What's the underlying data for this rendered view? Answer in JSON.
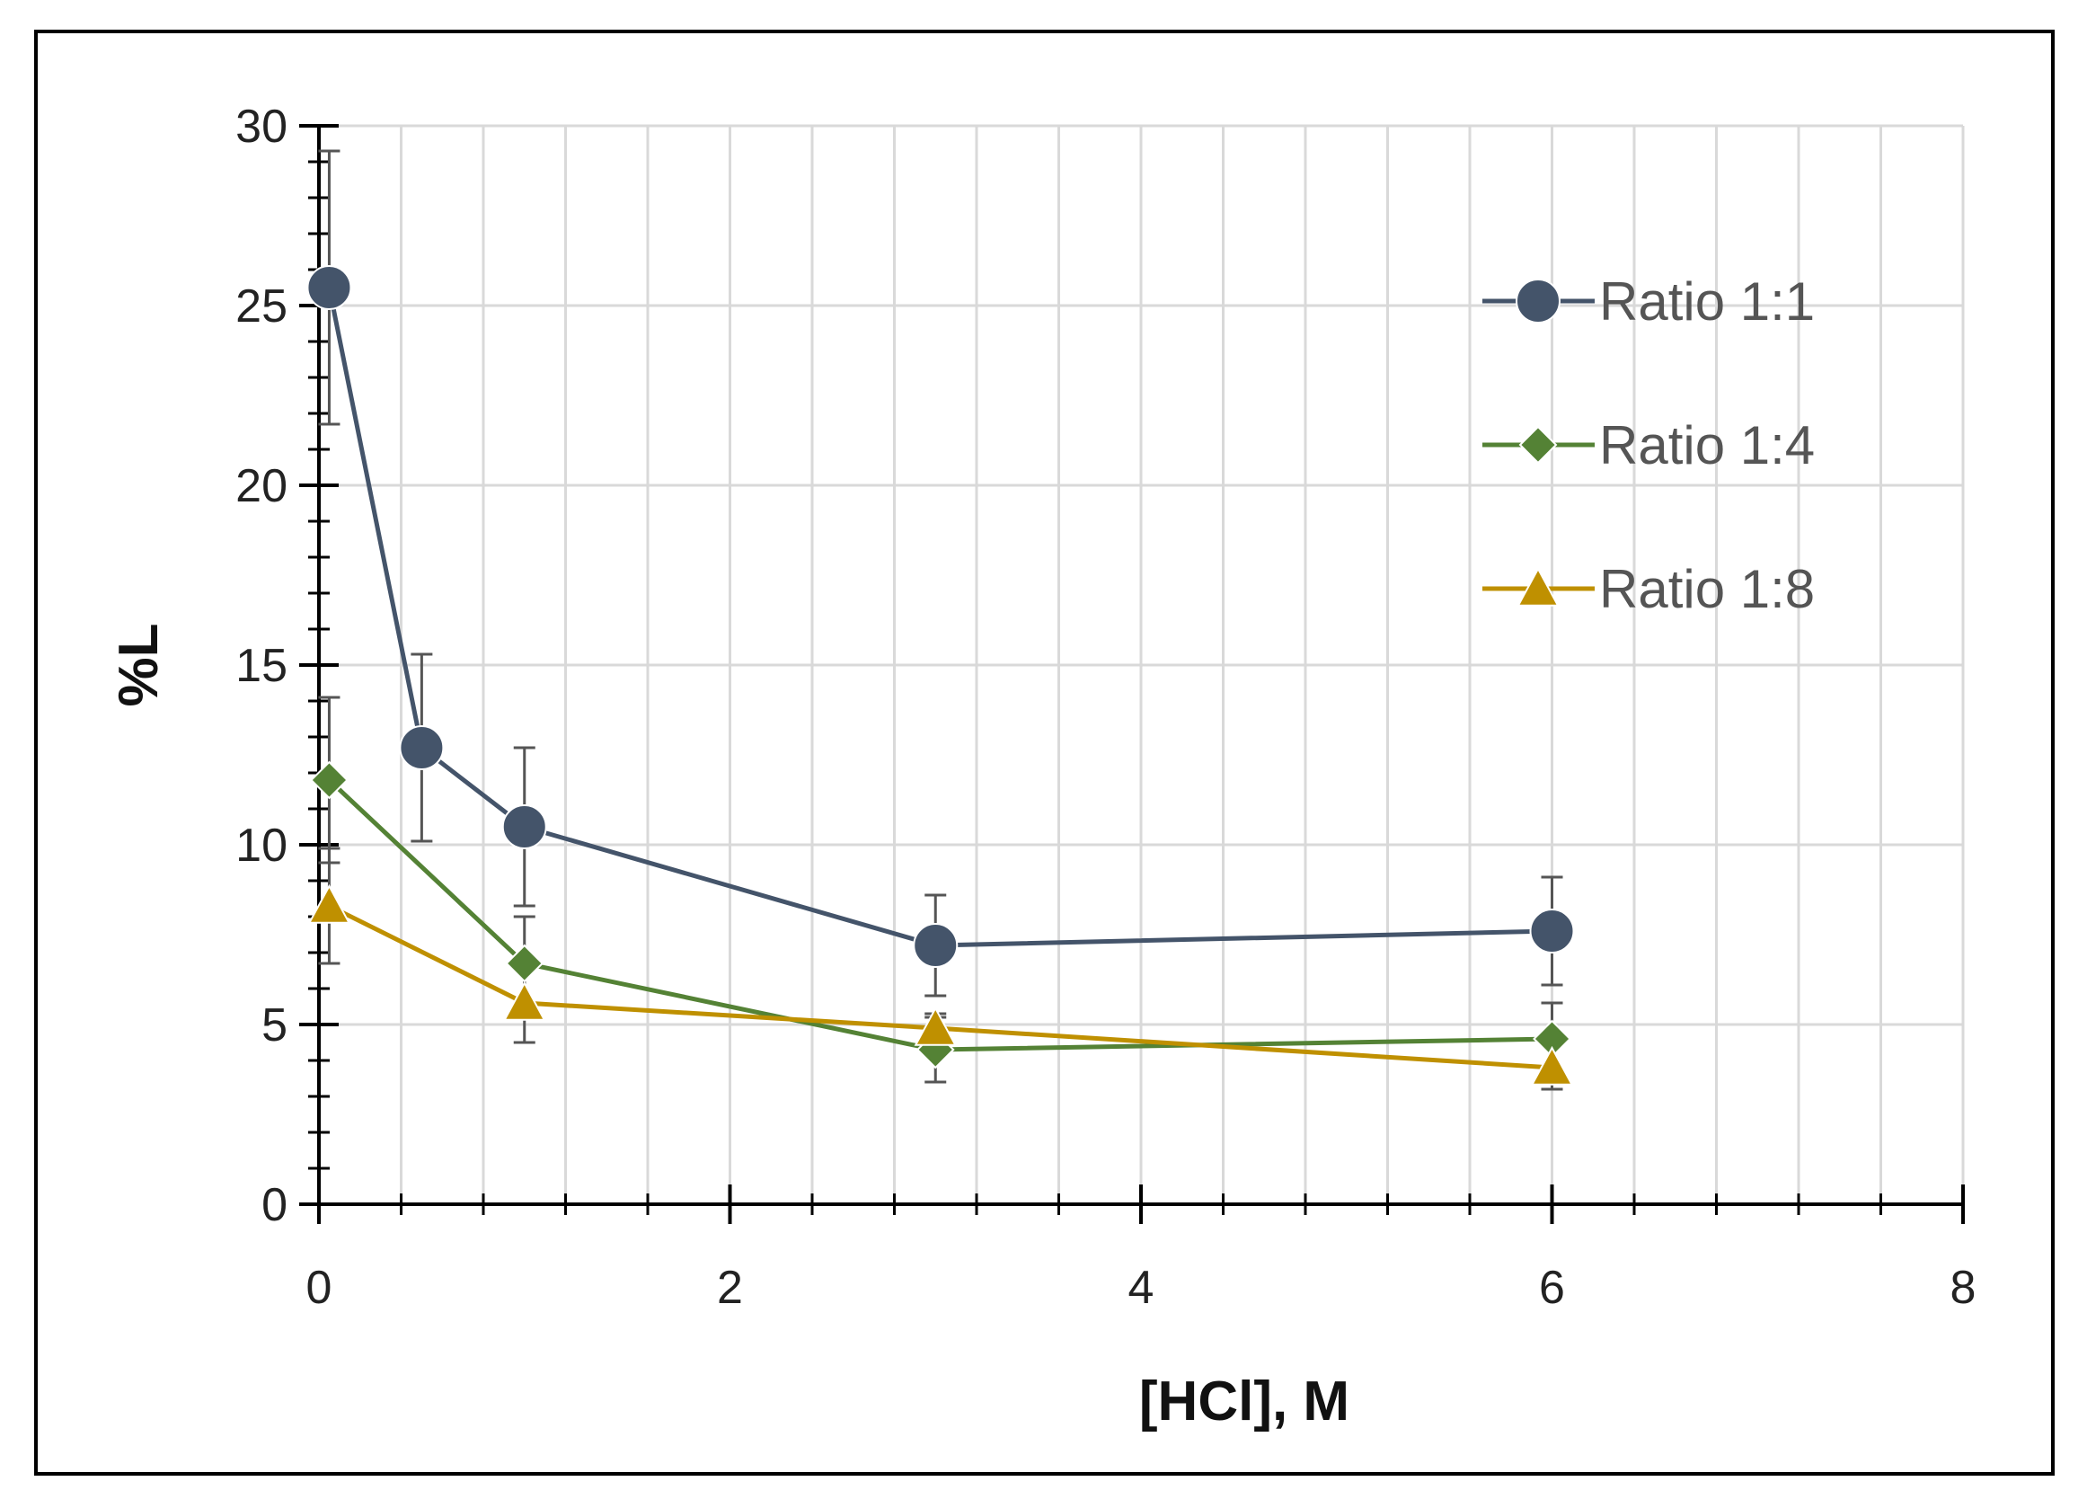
{
  "chart_data": {
    "type": "line",
    "title": "",
    "xlabel": "[HCl], M",
    "ylabel": "%L",
    "xlim": [
      0,
      8
    ],
    "ylim": [
      0,
      30
    ],
    "x_ticks": [
      0,
      2,
      4,
      6,
      8
    ],
    "y_ticks": [
      0,
      5,
      10,
      15,
      20,
      25,
      30
    ],
    "x_minor_step": 0.4,
    "y_minor_step": 1,
    "grid": true,
    "legend_position": "top-right",
    "series": [
      {
        "name": "Ratio 1:1",
        "marker": "circle",
        "color": "#44546a",
        "x": [
          0.05,
          0.5,
          1,
          3,
          6
        ],
        "y": [
          25.5,
          12.7,
          10.5,
          7.2,
          7.6
        ],
        "error": [
          3.8,
          2.6,
          2.2,
          1.4,
          1.5
        ]
      },
      {
        "name": "Ratio 1:4",
        "marker": "diamond",
        "color": "#548235",
        "x": [
          0.05,
          1,
          3,
          6
        ],
        "y": [
          11.8,
          6.7,
          4.3,
          4.6
        ],
        "error": [
          2.3,
          1.3,
          0.9,
          1.0
        ]
      },
      {
        "name": "Ratio 1:8",
        "marker": "triangle",
        "color": "#bf9000",
        "x": [
          0.05,
          1,
          3,
          6
        ],
        "y": [
          8.3,
          5.6,
          4.9,
          3.8
        ],
        "error": [
          1.6,
          1.1,
          0.4,
          0.6
        ]
      }
    ]
  }
}
